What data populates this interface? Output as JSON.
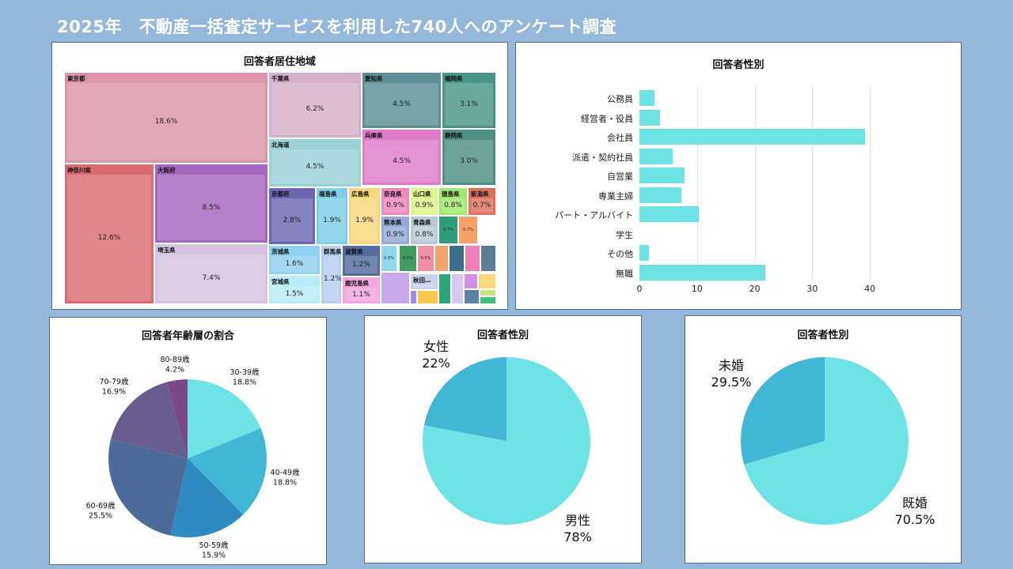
{
  "page_title": "2025年　不動産一括査定サービスを利用した740人へのアンケート調査",
  "chart_data": [
    {
      "type": "treemap",
      "title": "回答者居住地域",
      "items": [
        {
          "name": "東京都",
          "pct": "18.6%",
          "value": 18.6,
          "color": "#dc95a9"
        },
        {
          "name": "神奈川県",
          "pct": "12.6%",
          "value": 12.6,
          "color": "#d96b72"
        },
        {
          "name": "大阪府",
          "pct": "8.5%",
          "value": 8.5,
          "color": "#a466bf"
        },
        {
          "name": "埼玉県",
          "pct": "7.4%",
          "value": 7.4,
          "color": "#d6c3e0"
        },
        {
          "name": "千葉県",
          "pct": "6.2%",
          "value": 6.2,
          "color": "#d6b0ca"
        },
        {
          "name": "北海道",
          "pct": "4.5%",
          "value": 4.5,
          "color": "#9ad1d6"
        },
        {
          "name": "愛知県",
          "pct": "4.5%",
          "value": 4.5,
          "color": "#5b8f94"
        },
        {
          "name": "兵庫県",
          "pct": "4.5%",
          "value": 4.5,
          "color": "#df7cca"
        },
        {
          "name": "福岡県",
          "pct": "3.1%",
          "value": 3.1,
          "color": "#4a9487"
        },
        {
          "name": "静岡県",
          "pct": "3.0%",
          "value": 3.0,
          "color": "#4e8f86"
        },
        {
          "name": "京都府",
          "pct": "2.8%",
          "value": 2.8,
          "color": "#6c67b3"
        },
        {
          "name": "福島県",
          "pct": "1.9%",
          "value": 1.9,
          "color": "#7ecfe6"
        },
        {
          "name": "広島県",
          "pct": "1.9%",
          "value": 1.9,
          "color": "#f6d77b"
        },
        {
          "name": "茨城県",
          "pct": "1.6%",
          "value": 1.6,
          "color": "#8fd1f0"
        },
        {
          "name": "宮城県",
          "pct": "1.5%",
          "value": 1.5,
          "color": "#b5ecf7"
        },
        {
          "name": "群馬県",
          "pct": "1.2%",
          "value": 1.2,
          "color": "#b6ccf0"
        },
        {
          "name": "滋賀県",
          "pct": "1.2%",
          "value": 1.2,
          "color": "#546c9e"
        },
        {
          "name": "鹿児島県",
          "pct": "1.1%",
          "value": 1.1,
          "color": "#f5a6e0"
        },
        {
          "name": "奈良県",
          "pct": "0.9%",
          "value": 0.9,
          "color": "#ef88c0"
        },
        {
          "name": "山口県",
          "pct": "0.9%",
          "value": 0.9,
          "color": "#def58a"
        },
        {
          "name": "熊本県",
          "pct": "0.9%",
          "value": 0.9,
          "color": "#97a9d6"
        },
        {
          "name": "青森県",
          "pct": "0.8%",
          "value": 0.8,
          "color": "#b6cbd6"
        },
        {
          "name": "徳島県",
          "pct": "0.8%",
          "value": 0.8,
          "color": "#a0e870"
        },
        {
          "name": "新潟県",
          "pct": "0.7%",
          "value": 0.7,
          "color": "#de725f"
        },
        {
          "name": "秋田…",
          "pct": "",
          "value": 0.5,
          "color": "#c9d3ef"
        }
      ],
      "small_labels": [
        "0.7%",
        "0.7%",
        "0.5%",
        "0.5%",
        "0.5%"
      ]
    },
    {
      "type": "bar",
      "orientation": "horizontal",
      "title": "回答者性別",
      "categories": [
        "公務員",
        "経営者・役員",
        "会社員",
        "派遣・契約社員",
        "自営業",
        "専業主婦",
        "パート・アルバイト",
        "学生",
        "その他",
        "無職"
      ],
      "values": [
        2.6,
        3.6,
        39.2,
        5.8,
        7.8,
        7.3,
        10.3,
        0,
        1.6,
        21.9
      ],
      "xlim": [
        0,
        45
      ],
      "xticks": [
        0,
        10,
        20,
        30,
        40
      ],
      "color": "#6de3e6"
    },
    {
      "type": "pie",
      "title": "回答者年齢層の割合",
      "labels": [
        "30-39歳",
        "40-49歳",
        "50-59歳",
        "60-69歳",
        "70-79歳",
        "80-89歳"
      ],
      "pct_labels": [
        "18.8%",
        "18.8%",
        "15.9%",
        "25.5%",
        "16.9%",
        "4.2%"
      ],
      "values": [
        18.8,
        18.8,
        15.9,
        25.5,
        16.9,
        4.2
      ],
      "colors": [
        "#6de3e6",
        "#41b7d5",
        "#2e8bbf",
        "#4d6b9a",
        "#695c8e",
        "#7b4a86"
      ]
    },
    {
      "type": "pie",
      "title": "回答者性別",
      "labels": [
        "男性",
        "女性"
      ],
      "pct_labels": [
        "78%",
        "22%"
      ],
      "values": [
        78,
        22
      ],
      "colors": [
        "#6de3e6",
        "#41b7d5"
      ]
    },
    {
      "type": "pie",
      "title": "回答者性別",
      "labels": [
        "既婚",
        "未婚"
      ],
      "pct_labels": [
        "70.5%",
        "29.5%"
      ],
      "values": [
        70.5,
        29.5
      ],
      "colors": [
        "#6de3e6",
        "#41b7d5"
      ]
    }
  ]
}
